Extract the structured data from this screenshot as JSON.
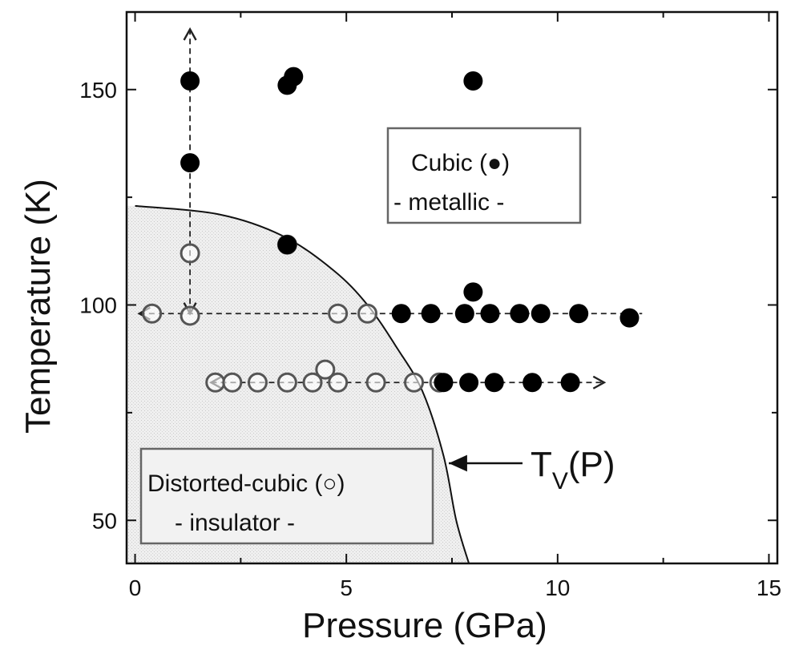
{
  "chart_data": {
    "type": "scatter",
    "xlabel": "Pressure (GPa)",
    "ylabel": "Temperature (K)",
    "xlim": [
      -0.2,
      15.2
    ],
    "ylim": [
      40,
      168
    ],
    "xticks": [
      0,
      5,
      10,
      15
    ],
    "yticks": [
      50,
      100,
      150
    ],
    "xtick_labels": [
      "0",
      "5",
      "10",
      "15"
    ],
    "ytick_labels": [
      "50",
      "100",
      "150"
    ],
    "grid": false,
    "series": [
      {
        "marker": "filled-circle",
        "points": [
          [
            1.3,
            152
          ],
          [
            3.6,
            151
          ],
          [
            3.75,
            153
          ],
          [
            8.0,
            152
          ],
          [
            1.3,
            133
          ],
          [
            3.6,
            114
          ],
          [
            8.0,
            103
          ],
          [
            6.3,
            98
          ],
          [
            7.0,
            98
          ],
          [
            7.8,
            98
          ],
          [
            8.4,
            98
          ],
          [
            9.1,
            98
          ],
          [
            9.6,
            98
          ],
          [
            10.5,
            98
          ],
          [
            11.7,
            97
          ],
          [
            7.3,
            82
          ],
          [
            7.9,
            82
          ],
          [
            8.5,
            82
          ],
          [
            9.4,
            82
          ],
          [
            10.3,
            82
          ]
        ]
      },
      {
        "marker": "open-circle",
        "points": [
          [
            1.3,
            112
          ],
          [
            3.6,
            114
          ],
          [
            0.4,
            98
          ],
          [
            1.3,
            97.5
          ],
          [
            4.8,
            98
          ],
          [
            5.5,
            98
          ],
          [
            1.9,
            82
          ],
          [
            2.3,
            82
          ],
          [
            2.9,
            82
          ],
          [
            3.6,
            82
          ],
          [
            4.2,
            82
          ],
          [
            4.5,
            85
          ],
          [
            4.8,
            82
          ],
          [
            5.7,
            82
          ],
          [
            6.6,
            82
          ],
          [
            7.2,
            82
          ]
        ]
      }
    ],
    "boundary": {
      "points": [
        [
          0,
          123
        ],
        [
          2,
          121
        ],
        [
          3.5,
          116
        ],
        [
          4.7,
          108
        ],
        [
          5.5,
          100
        ],
        [
          6.2,
          90
        ],
        [
          6.8,
          80
        ],
        [
          7.3,
          65
        ],
        [
          7.6,
          50
        ],
        [
          7.9,
          40
        ]
      ]
    },
    "guide_lines": [
      {
        "x": [
          0.1,
          12.0
        ],
        "y": [
          98,
          98
        ],
        "arrowheads": [
          "start"
        ]
      },
      {
        "x": [
          1.8,
          11.1
        ],
        "y": [
          82,
          82
        ],
        "arrowheads": [
          "start",
          "end"
        ]
      },
      {
        "x": [
          1.3,
          1.3
        ],
        "y": [
          98,
          164
        ],
        "arrowheads": [
          "start",
          "end"
        ]
      }
    ],
    "regions": [
      {
        "label": "Cubic (●)",
        "sublabel": "- metallic -"
      },
      {
        "label": "Distorted-cubic (○)",
        "sublabel": "- insulator -"
      }
    ],
    "annotation": {
      "text": "T",
      "subscript": "V",
      "suffix": "(P)"
    }
  }
}
